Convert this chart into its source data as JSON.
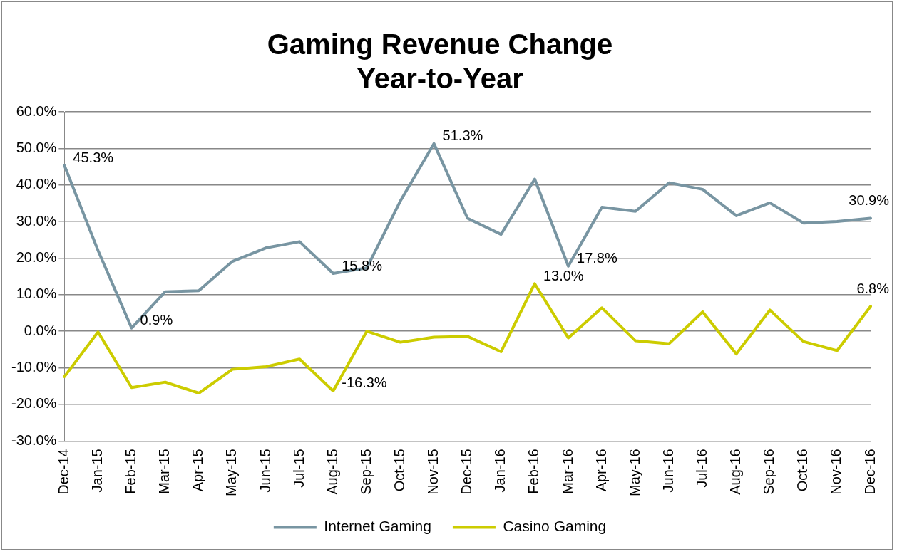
{
  "chart_data": {
    "type": "line",
    "title": [
      "Gaming Revenue Change",
      "Year-to-Year"
    ],
    "categories": [
      "Dec-14",
      "Jan-15",
      "Feb-15",
      "Mar-15",
      "Apr-15",
      "May-15",
      "Jun-15",
      "Jul-15",
      "Aug-15",
      "Sep-15",
      "Oct-15",
      "Nov-15",
      "Dec-15",
      "Jan-16",
      "Feb-16",
      "Mar-16",
      "Apr-16",
      "May-16",
      "Jun-16",
      "Jul-16",
      "Aug-16",
      "Sep-16",
      "Oct-16",
      "Nov-16",
      "Dec-16"
    ],
    "series": [
      {
        "name": "Internet Gaming",
        "color": "#7895a2",
        "values": [
          45.3,
          22.1,
          0.9,
          10.8,
          11.1,
          19.1,
          22.8,
          24.5,
          15.8,
          17.3,
          35.6,
          51.3,
          30.9,
          26.5,
          41.6,
          17.8,
          33.9,
          32.8,
          40.6,
          38.8,
          31.6,
          35.1,
          29.6,
          30.0,
          30.9
        ],
        "value_labels": [
          "45.3%",
          null,
          "0.9%",
          null,
          null,
          null,
          null,
          null,
          "15.8%",
          null,
          null,
          "51.3%",
          null,
          null,
          null,
          "17.8%",
          null,
          null,
          null,
          null,
          null,
          null,
          null,
          null,
          "30.9%"
        ]
      },
      {
        "name": "Casino Gaming",
        "color": "#cccc00",
        "values": [
          -12.4,
          -0.2,
          -15.4,
          -13.9,
          -16.9,
          -10.4,
          -9.7,
          -7.6,
          -16.3,
          0.0,
          -3.0,
          -1.6,
          -1.4,
          -5.6,
          13.0,
          -1.8,
          6.4,
          -2.6,
          -3.4,
          5.3,
          -6.2,
          5.8,
          -2.8,
          -5.3,
          6.8
        ],
        "value_labels": [
          null,
          null,
          null,
          null,
          null,
          null,
          null,
          null,
          "-16.3%",
          null,
          null,
          null,
          null,
          null,
          "13.0%",
          null,
          null,
          null,
          null,
          null,
          null,
          null,
          null,
          null,
          "6.8%"
        ]
      }
    ],
    "ylim": [
      -30,
      60
    ],
    "yticks": [
      {
        "value": -30,
        "label": "-30.0%"
      },
      {
        "value": -20,
        "label": "-20.0%"
      },
      {
        "value": -10,
        "label": "-10.0%"
      },
      {
        "value": 0,
        "label": "0.0%"
      },
      {
        "value": 10,
        "label": "10.0%"
      },
      {
        "value": 20,
        "label": "20.0%"
      },
      {
        "value": 30,
        "label": "30.0%"
      },
      {
        "value": 40,
        "label": "40.0%"
      },
      {
        "value": 50,
        "label": "50.0%"
      },
      {
        "value": 60,
        "label": "60.0%"
      }
    ],
    "grid": "y",
    "legend": "bottom",
    "marker": "none",
    "line_style": "solid"
  }
}
